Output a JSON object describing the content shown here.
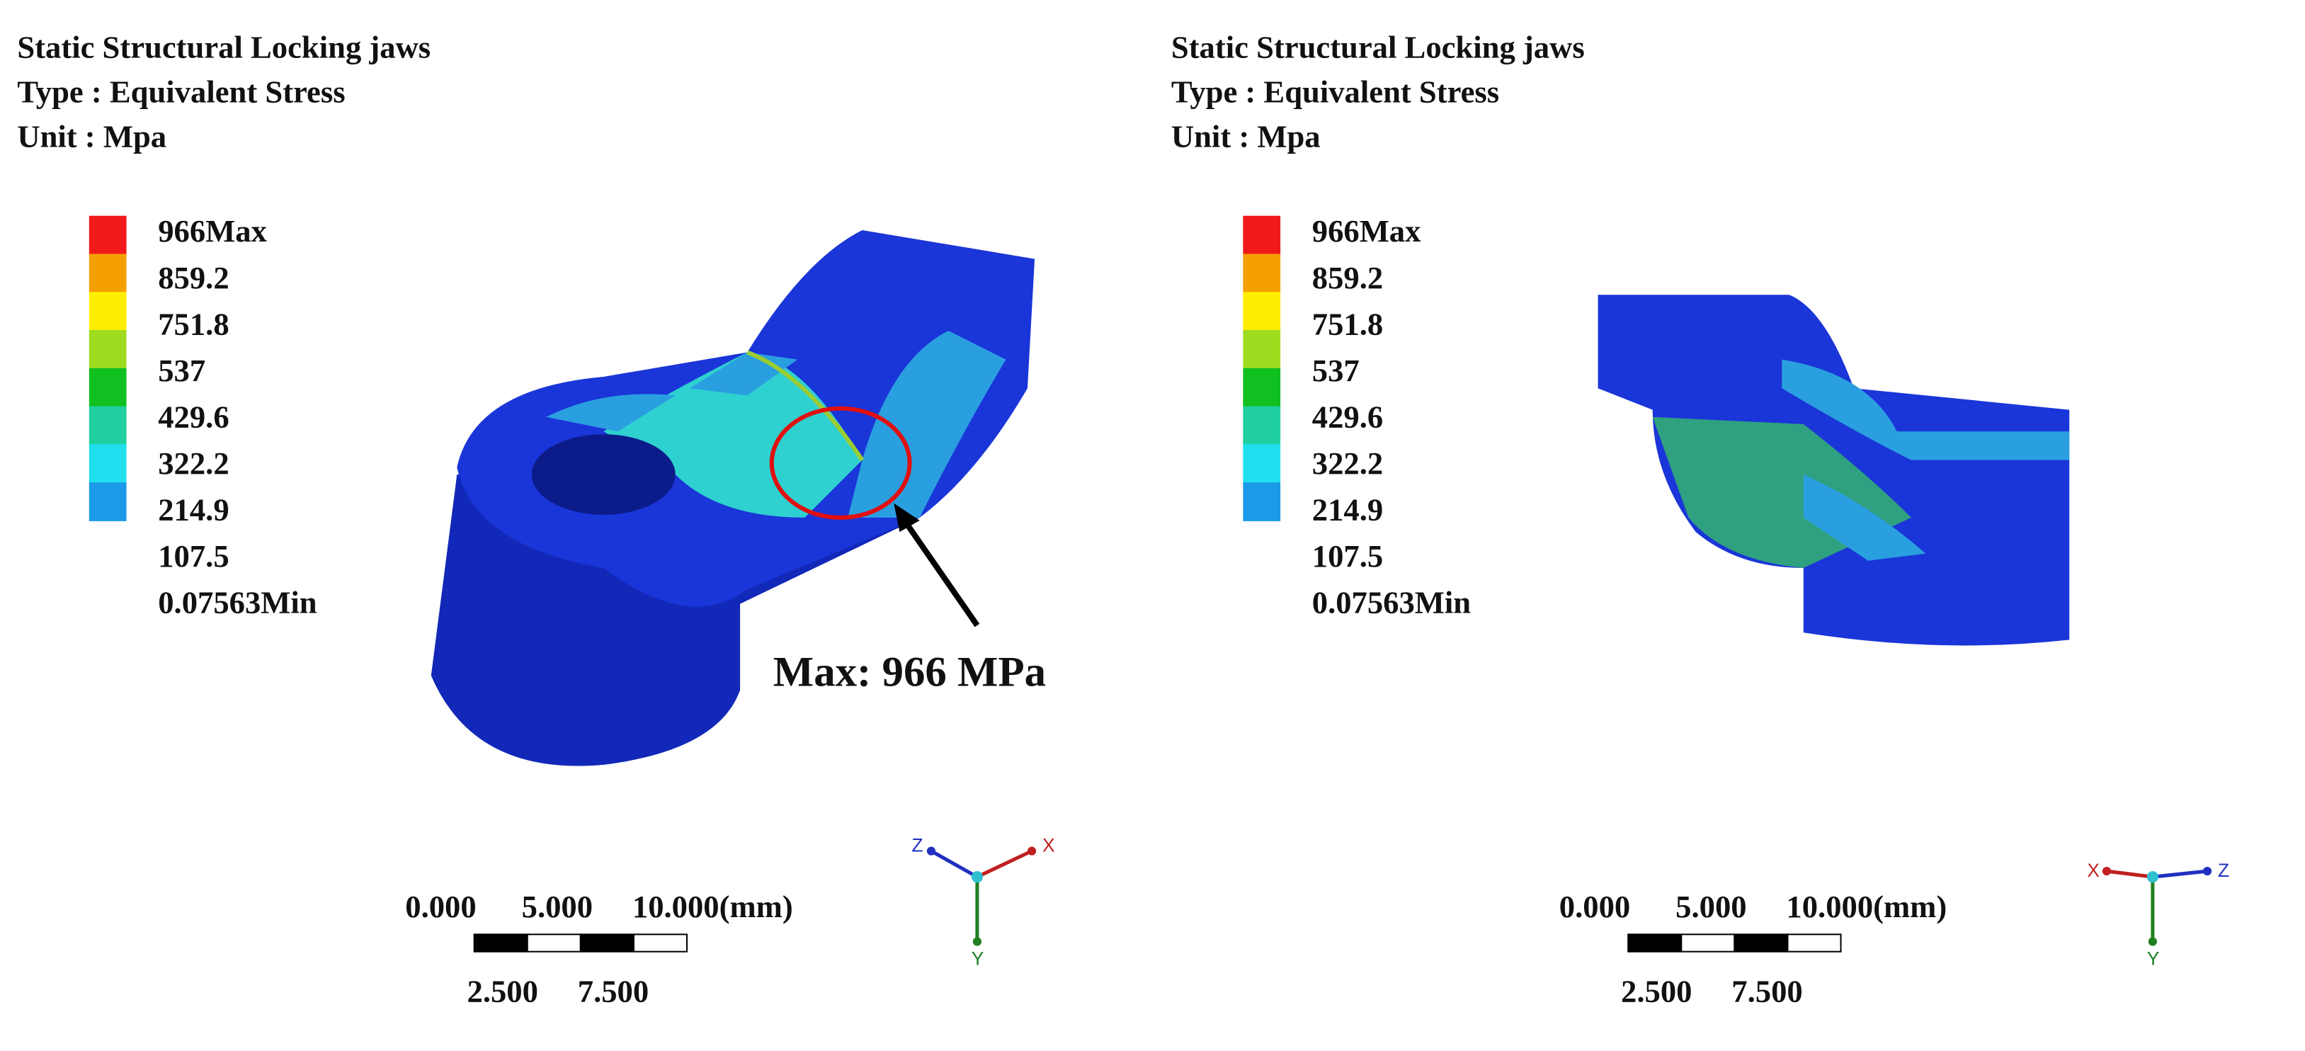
{
  "panels": [
    {
      "title_lines": [
        "Static Structural Locking jaws",
        "Type : Equivalent Stress",
        "Unit : Mpa"
      ],
      "legend_labels": [
        "966Max",
        "859.2",
        "751.8",
        "537",
        "429.6",
        "322.2",
        "214.9",
        "107.5",
        "0.07563Min"
      ],
      "scale_top": [
        "0.000",
        "5.000",
        "10.000(mm)"
      ],
      "scale_bottom": [
        "2.500",
        "7.500"
      ],
      "axes": [
        "Z",
        "X",
        "Y"
      ],
      "annotation": "Max: 966 MPa"
    },
    {
      "title_lines": [
        "Static Structural Locking jaws",
        "Type : Equivalent Stress",
        "Unit : Mpa"
      ],
      "legend_labels": [
        "966Max",
        "859.2",
        "751.8",
        "537",
        "429.6",
        "322.2",
        "214.9",
        "107.5",
        "0.07563Min"
      ],
      "scale_top": [
        "0.000",
        "5.000",
        "10.000(mm)"
      ],
      "scale_bottom": [
        "2.500",
        "7.500"
      ],
      "axes": [
        "X",
        "Z",
        "Y"
      ]
    }
  ]
}
